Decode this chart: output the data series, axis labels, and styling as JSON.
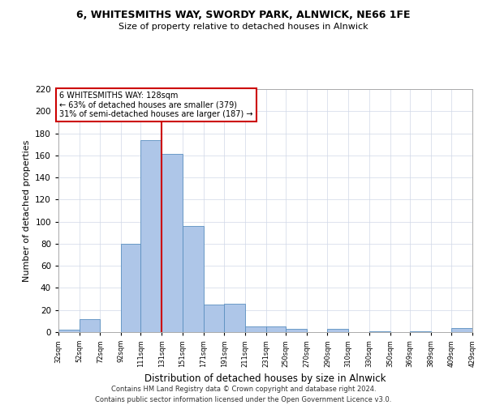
{
  "title1": "6, WHITESMITHS WAY, SWORDY PARK, ALNWICK, NE66 1FE",
  "title2": "Size of property relative to detached houses in Alnwick",
  "xlabel": "Distribution of detached houses by size in Alnwick",
  "ylabel": "Number of detached properties",
  "footer1": "Contains HM Land Registry data © Crown copyright and database right 2024.",
  "footer2": "Contains public sector information licensed under the Open Government Licence v3.0.",
  "annotation_line1": "6 WHITESMITHS WAY: 128sqm",
  "annotation_line2": "← 63% of detached houses are smaller (379)",
  "annotation_line3": "31% of semi-detached houses are larger (187) →",
  "property_size": 128,
  "red_line_x": 131,
  "bar_color": "#aec6e8",
  "bar_edge_color": "#5a8fc0",
  "red_line_color": "#cc0000",
  "background_color": "#ffffff",
  "grid_color": "#d0d8e8",
  "bins": [
    32,
    52,
    72,
    92,
    111,
    131,
    151,
    171,
    191,
    211,
    231,
    250,
    270,
    290,
    310,
    330,
    350,
    369,
    389,
    409,
    429
  ],
  "counts": [
    2,
    12,
    0,
    80,
    174,
    161,
    96,
    25,
    26,
    5,
    5,
    3,
    0,
    3,
    0,
    1,
    0,
    1,
    0,
    4
  ],
  "ylim": [
    0,
    220
  ],
  "yticks": [
    0,
    20,
    40,
    60,
    80,
    100,
    120,
    140,
    160,
    180,
    200,
    220
  ]
}
